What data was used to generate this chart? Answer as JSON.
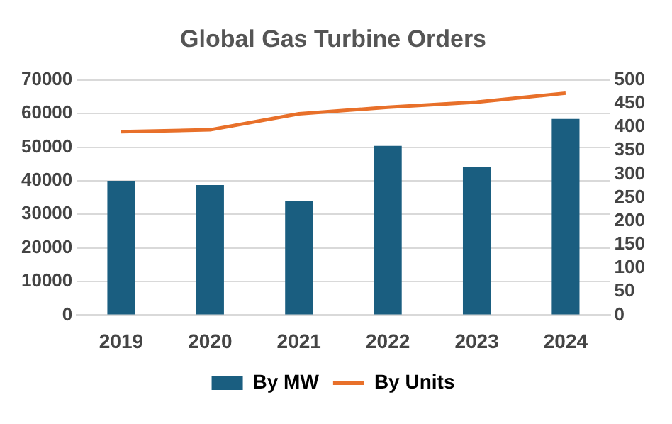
{
  "chart_data": {
    "type": "bar",
    "title": "Global Gas Turbine Orders",
    "categories": [
      "2019",
      "2020",
      "2021",
      "2022",
      "2023",
      "2024"
    ],
    "series": [
      {
        "name": "By MW",
        "color": "#1a5e80",
        "values": [
          40000,
          38700,
          34000,
          50400,
          44100,
          58400
        ]
      },
      {
        "name": "By Units",
        "type": "line",
        "axis": "y2",
        "color": "#e8702a",
        "values": [
          390,
          394,
          428,
          442,
          453,
          472
        ]
      }
    ],
    "ylim": [
      0,
      70000
    ],
    "yticks": [
      0,
      10000,
      20000,
      30000,
      40000,
      50000,
      60000,
      70000
    ],
    "y2lim": [
      0,
      500
    ],
    "y2ticks": [
      0,
      50,
      100,
      150,
      200,
      250,
      300,
      350,
      400,
      450,
      500
    ],
    "grid": "y",
    "legend": "bottom",
    "marker": "none"
  }
}
